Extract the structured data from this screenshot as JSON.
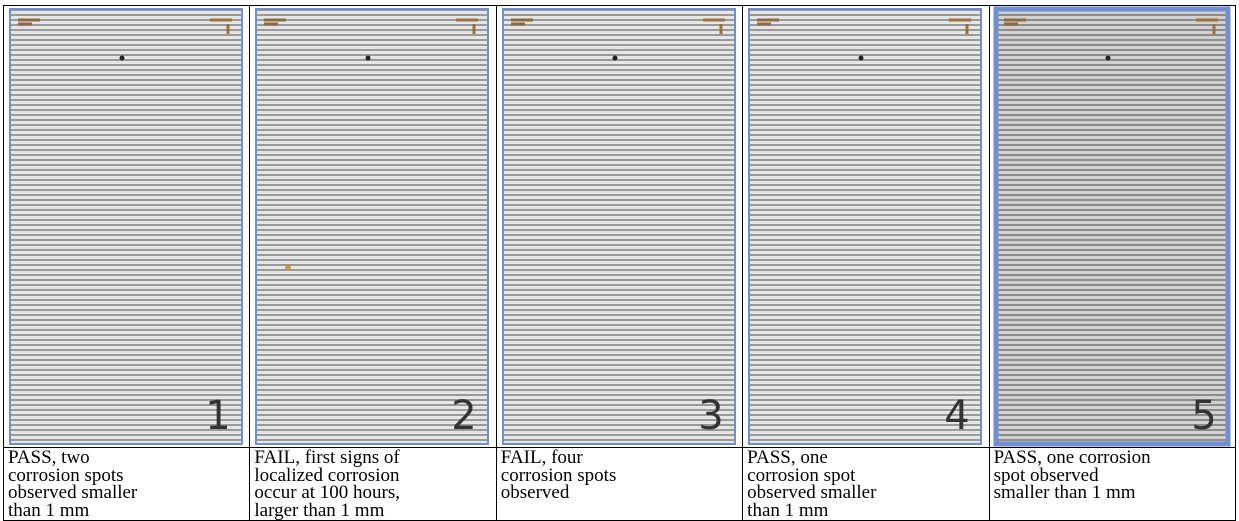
{
  "panels": [
    {
      "number": "1",
      "caption": [
        "PASS, two",
        "corrosion spots",
        "observed smaller",
        "than 1 mm"
      ]
    },
    {
      "number": "2",
      "caption": [
        "FAIL, first signs of",
        "localized corrosion",
        "occur at 100 hours,",
        "larger than 1 mm"
      ]
    },
    {
      "number": "3",
      "caption": [
        "FAIL, four",
        "corrosion spots",
        "observed"
      ]
    },
    {
      "number": "4",
      "caption": [
        "PASS, one",
        "corrosion spot",
        "observed smaller",
        "than 1 mm"
      ]
    },
    {
      "number": "5",
      "caption": [
        "PASS, one corrosion",
        "spot observed",
        "smaller than 1 mm"
      ]
    }
  ]
}
